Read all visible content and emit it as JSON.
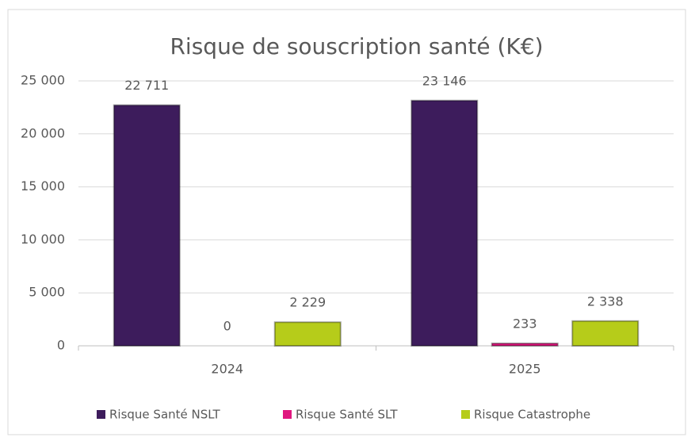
{
  "chart_data": {
    "type": "bar",
    "title": "Risque de souscription santé (K€)",
    "categories": [
      "2024",
      "2025"
    ],
    "series": [
      {
        "name": "Risque Santé NSLT",
        "color": "#3d1c5c",
        "values": [
          22711,
          23146
        ],
        "value_labels": [
          "22 711",
          "23 146"
        ]
      },
      {
        "name": "Risque Santé SLT",
        "color": "#e0177f",
        "values": [
          0,
          233
        ],
        "value_labels": [
          "0",
          "233"
        ]
      },
      {
        "name": "Risque Catastrophe",
        "color": "#b6cc1a",
        "values": [
          2229,
          2338
        ],
        "value_labels": [
          "2 229",
          "2 338"
        ]
      }
    ],
    "ylim": [
      0,
      25000
    ],
    "yticks": [
      0,
      {
        "value": 5000,
        "label": "5 000"
      },
      {
        "value": 10000,
        "label": "10 000"
      },
      {
        "value": 15000,
        "label": "15 000"
      },
      {
        "value": 20000,
        "label": "20 000"
      },
      {
        "value": 25000,
        "label": "25 000"
      }
    ],
    "grid": true,
    "legend": "bottom"
  }
}
